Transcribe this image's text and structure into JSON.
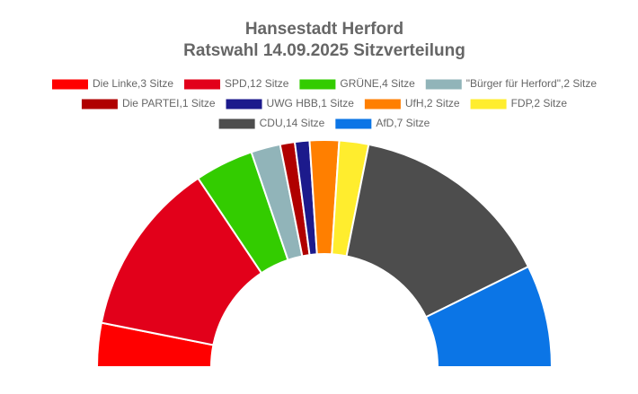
{
  "chart_data": {
    "type": "parliament",
    "title": "Hansestadt Herford",
    "subtitle": "Ratswahl 14.09.2025 Sitzverteilung",
    "series": [
      {
        "name": "Die Linke,3 Sitze",
        "color": "#ff0000",
        "values": [
          3
        ]
      },
      {
        "name": "SPD,12 Sitze",
        "color": "#e2001a",
        "values": [
          12
        ]
      },
      {
        "name": "GRÜNE,4 Sitze",
        "color": "#33cc00",
        "values": [
          4
        ]
      },
      {
        "name": "\"Bürger für Herford\",2 Sitze",
        "color": "#91b4b9",
        "values": [
          2
        ]
      },
      {
        "name": "Die PARTEI,1 Sitze",
        "color": "#b00000",
        "values": [
          1
        ]
      },
      {
        "name": "UWG HBB,1 Sitze",
        "color": "#1c1a8c",
        "values": [
          1
        ]
      },
      {
        "name": "UfH,2 Sitze",
        "color": "#ff7f00",
        "values": [
          2
        ]
      },
      {
        "name": "FDP,2 Sitze",
        "color": "#ffed2e",
        "values": [
          2
        ]
      },
      {
        "name": "CDU,14 Sitze",
        "color": "#4d4d4d",
        "values": [
          14
        ]
      },
      {
        "name": "AfD,7 Sitze",
        "color": "#0b75e6",
        "values": [
          7
        ]
      }
    ],
    "legend": "top"
  }
}
